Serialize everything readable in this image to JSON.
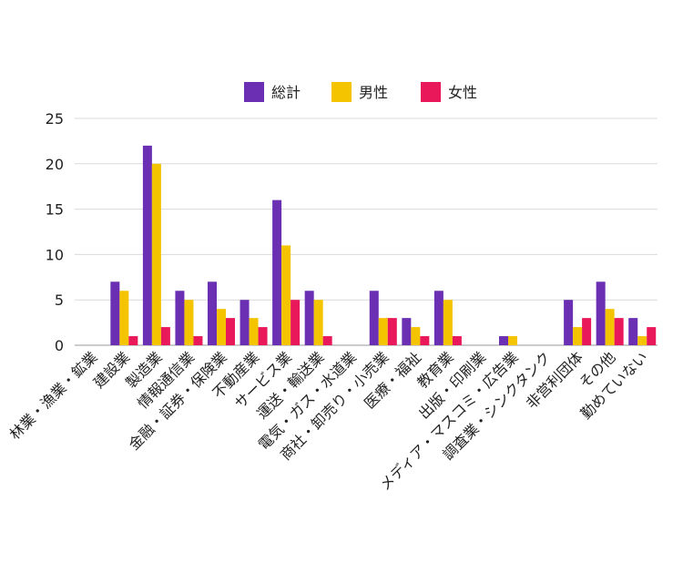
{
  "chart_data": {
    "type": "bar",
    "title": "",
    "xlabel": "",
    "ylabel": "",
    "ylim": [
      0,
      25
    ],
    "yticks": [
      0,
      5,
      10,
      15,
      20,
      25
    ],
    "grid": true,
    "legend_position": "top-center",
    "categories": [
      "林業・漁業・鉱業",
      "建設業",
      "製造業",
      "情報通信業",
      "金融・証券・保険業",
      "不動産業",
      "サービス業",
      "運送・輸送業",
      "電気・ガス・水道業",
      "商社・卸売り・小売業",
      "医療・福祉",
      "教育業",
      "出版・印刷業",
      "メディア・マスコミ・広告業",
      "調査業・シンクタンク",
      "非営利団体",
      "その他",
      "勤めていない"
    ],
    "series": [
      {
        "name": "総計",
        "color": "#6a2fb3",
        "values": [
          0,
          7,
          22,
          6,
          7,
          5,
          16,
          6,
          0,
          6,
          3,
          6,
          0,
          1,
          0,
          5,
          7,
          3
        ]
      },
      {
        "name": "男性",
        "color": "#f5c400",
        "values": [
          0,
          6,
          20,
          5,
          4,
          3,
          11,
          5,
          0,
          3,
          2,
          5,
          0,
          1,
          0,
          2,
          4,
          1
        ]
      },
      {
        "name": "女性",
        "color": "#e8185a",
        "values": [
          0,
          1,
          2,
          1,
          3,
          2,
          5,
          1,
          0,
          3,
          1,
          1,
          0,
          0,
          0,
          3,
          3,
          2
        ]
      }
    ]
  }
}
